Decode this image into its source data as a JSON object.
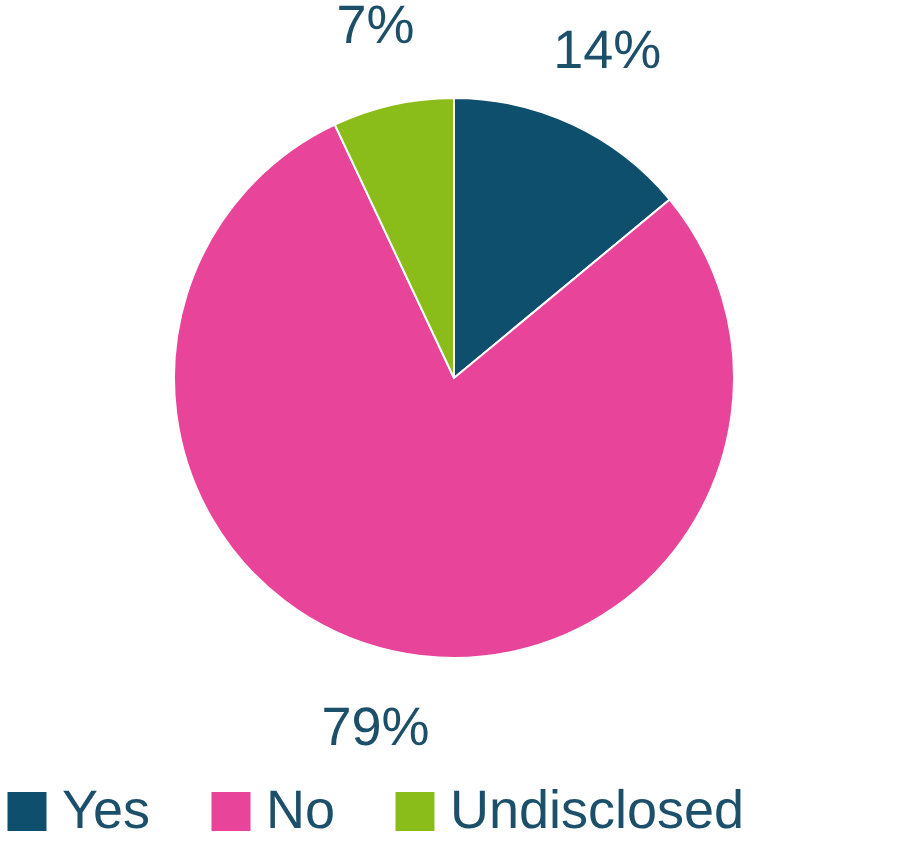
{
  "chart_data": {
    "type": "pie",
    "categories": [
      "Yes",
      "No",
      "Undisclosed"
    ],
    "values": [
      14,
      79,
      7
    ],
    "colors": [
      "#0e4f6e",
      "#e8449a",
      "#8abd19"
    ],
    "value_labels": [
      "14%",
      "79%",
      "7%"
    ],
    "legend": "bottom"
  }
}
